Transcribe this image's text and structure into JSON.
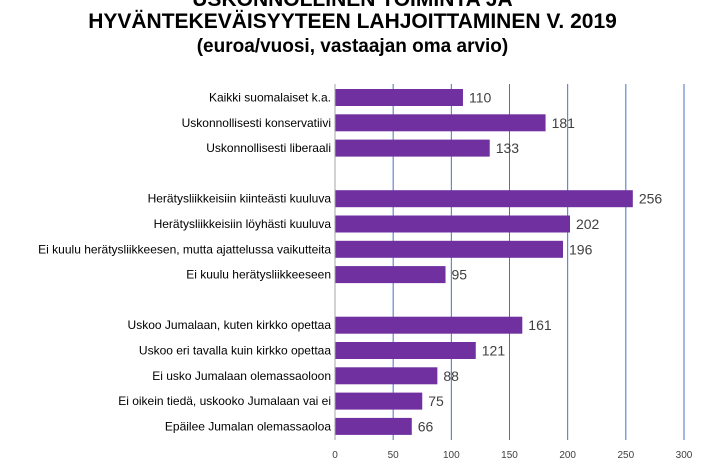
{
  "title": {
    "line1": "USKONNOLLINEN TOIMINTA JA",
    "line2": "HYVÄNTEKEVÄISYYTEEN LAHJOITTAMINEN V. 2019",
    "line3": "(euroa/vuosi, vastaajan oma arvio)"
  },
  "chart_data": {
    "type": "bar",
    "orientation": "horizontal",
    "groups": [
      {
        "categories": [
          "Kaikki suomalaiset k.a.",
          "Uskonnollisesti konservatiivi",
          "Uskonnollisesti liberaali"
        ],
        "values": [
          110,
          181,
          133
        ]
      },
      {
        "categories": [
          "Herätysliikkeisiin kiinteästi kuuluva",
          "Herätysliikkeisiin löyhästi kuuluva",
          "Ei kuulu herätysliikkeesen, mutta ajattelussa vaikutteita",
          "Ei kuulu herätysliikkeeseen"
        ],
        "values": [
          256,
          202,
          196,
          95
        ]
      },
      {
        "categories": [
          "Uskoo Jumalaan, kuten kirkko opettaa",
          "Uskoo eri tavalla kuin kirkko opettaa",
          "Ei usko Jumalaan olemassaoloon",
          "Ei oikein tiedä, uskooko Jumalaan vai ei",
          "Epäilee Jumalan olemassaoloa"
        ],
        "values": [
          161,
          121,
          88,
          75,
          66
        ]
      }
    ],
    "xlim": [
      0,
      300
    ],
    "xticks": [
      0,
      50,
      100,
      150,
      200,
      250,
      300
    ],
    "grid": true,
    "data_labels": true,
    "colors": {
      "bar": "#7030a0",
      "grid": "#4472c4",
      "axis": "#a6a6a6"
    }
  }
}
